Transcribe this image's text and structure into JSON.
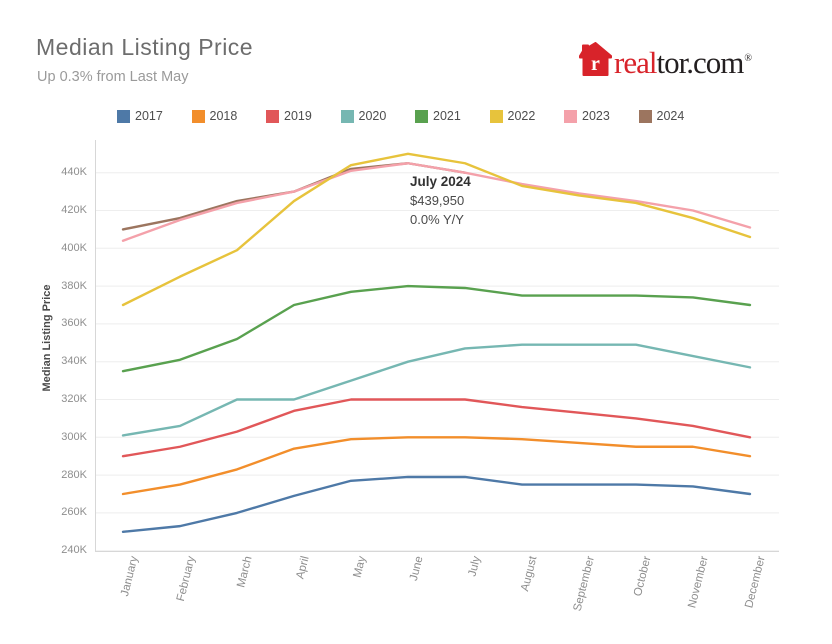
{
  "header": {
    "title": "Median Listing Price",
    "subtitle": "Up 0.3% from Last May"
  },
  "logo": {
    "brand_red": "real",
    "brand_dark": "tor.com",
    "registered": "®",
    "house_color": "#d8232a",
    "text_dark_color": "#231f20"
  },
  "y_axis": {
    "title": "Median Listing Price",
    "ticks": [
      "240K",
      "260K",
      "280K",
      "300K",
      "320K",
      "340K",
      "360K",
      "380K",
      "400K",
      "420K",
      "440K"
    ]
  },
  "x_axis": {
    "months": [
      "January",
      "February",
      "March",
      "April",
      "May",
      "June",
      "July",
      "August",
      "September",
      "October",
      "November",
      "December"
    ]
  },
  "annotation": {
    "line1": "July 2024",
    "line2": "$439,950",
    "line3": "0.0% Y/Y"
  },
  "chart_data": {
    "type": "line",
    "title": "Median Listing Price",
    "subtitle": "Up 0.3% from Last May",
    "xlabel": "",
    "ylabel": "Median Listing Price",
    "unit": "USD thousands",
    "ylim": [
      240,
      455
    ],
    "y_tick_step": 20,
    "grid": true,
    "legend_position": "top",
    "categories": [
      "January",
      "February",
      "March",
      "April",
      "May",
      "June",
      "July",
      "August",
      "September",
      "October",
      "November",
      "December"
    ],
    "series": [
      {
        "name": "2017",
        "color": "#4e79a7",
        "values": [
          250,
          253,
          260,
          269,
          277,
          279,
          279,
          275,
          275,
          275,
          274,
          270
        ]
      },
      {
        "name": "2018",
        "color": "#f28e2b",
        "values": [
          270,
          275,
          283,
          294,
          299,
          300,
          300,
          299,
          297,
          295,
          295,
          290
        ]
      },
      {
        "name": "2019",
        "color": "#e15759",
        "values": [
          290,
          295,
          303,
          314,
          320,
          320,
          320,
          316,
          313,
          310,
          306,
          300
        ]
      },
      {
        "name": "2020",
        "color": "#76b7b2",
        "values": [
          301,
          306,
          320,
          320,
          330,
          340,
          347,
          349,
          349,
          349,
          343,
          337
        ]
      },
      {
        "name": "2021",
        "color": "#59a14f",
        "values": [
          335,
          341,
          352,
          370,
          377,
          380,
          379,
          375,
          375,
          375,
          374,
          370
        ]
      },
      {
        "name": "2022",
        "color": "#e7c33c",
        "values": [
          370,
          385,
          399,
          425,
          444,
          450,
          445,
          433,
          428,
          424,
          416,
          406
        ]
      },
      {
        "name": "2023",
        "color": "#f4a1aa",
        "values": [
          404,
          415,
          424,
          430,
          441,
          445,
          440,
          434,
          429,
          425,
          420,
          411
        ]
      },
      {
        "name": "2024",
        "color": "#9c755f",
        "values": [
          410,
          416,
          425,
          430,
          442,
          445,
          440
        ]
      }
    ],
    "annotation": {
      "label": "July 2024",
      "value": "$439,950",
      "yoy": "0.0% Y/Y",
      "series": "2024",
      "month": "July"
    }
  }
}
